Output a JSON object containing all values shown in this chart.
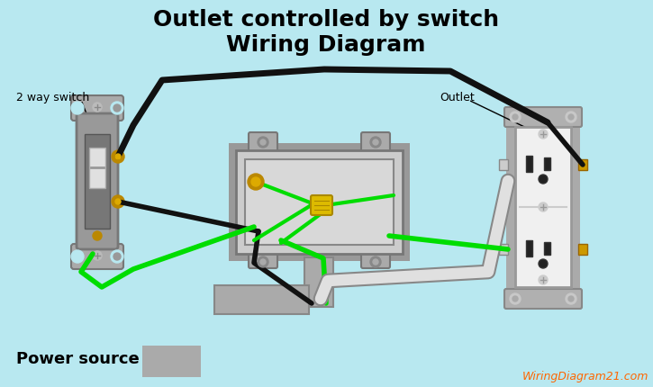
{
  "bg_color": "#b8e8f0",
  "title_line1": "Outlet controlled by switch",
  "title_line2": "Wiring Diagram",
  "title_color": "#000000",
  "title_fontsize1": 18,
  "title_fontsize2": 18,
  "label_switch": "2 way switch",
  "label_outlet": "Outlet",
  "label_power": "Power source",
  "label_website": "WiringDiagram21.com",
  "wire_black_color": "#111111",
  "wire_green_color": "#00dd00",
  "switch_gray": "#888888",
  "switch_dark": "#666666",
  "box_gray": "#aaaaaa",
  "outlet_white": "#f0f0f0",
  "brass_color": "#cc9900",
  "yellow_nut": "#ddbb00",
  "conduit_gray": "#aaaaaa"
}
